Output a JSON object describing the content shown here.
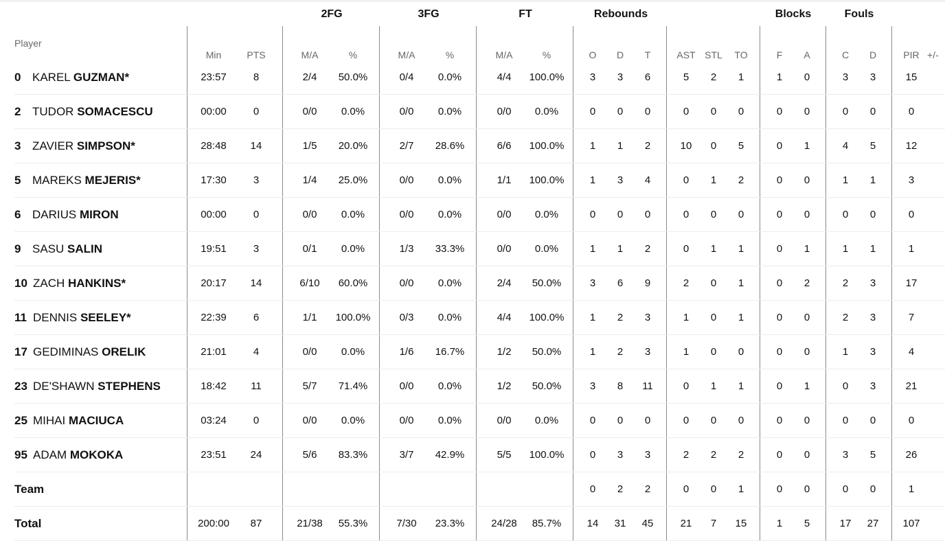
{
  "groups": {
    "fg2": "2FG",
    "fg3": "3FG",
    "ft": "FT",
    "reb": "Rebounds",
    "blk": "Blocks",
    "fouls": "Fouls"
  },
  "headers": {
    "player": "Player",
    "min": "Min",
    "pts": "PTS",
    "fg2_ma": "M/A",
    "fg2_pct": "%",
    "fg3_ma": "M/A",
    "fg3_pct": "%",
    "ft_ma": "M/A",
    "ft_pct": "%",
    "reb_o": "O",
    "reb_d": "D",
    "reb_t": "T",
    "ast": "AST",
    "stl": "STL",
    "to": "TO",
    "blk_f": "F",
    "blk_a": "A",
    "foul_c": "C",
    "foul_d": "D",
    "pir": "PIR",
    "pm": "+/-"
  },
  "players": [
    {
      "num": "0",
      "first": "KAREL",
      "last": "GUZMAN*",
      "min": "23:57",
      "pts": "8",
      "fg2_ma": "2/4",
      "fg2_pct": "50.0%",
      "fg3_ma": "0/4",
      "fg3_pct": "0.0%",
      "ft_ma": "4/4",
      "ft_pct": "100.0%",
      "o": "3",
      "d": "3",
      "t": "6",
      "ast": "5",
      "stl": "2",
      "to": "1",
      "bf": "1",
      "ba": "0",
      "fc": "3",
      "fd": "3",
      "pir": "15"
    },
    {
      "num": "2",
      "first": "TUDOR",
      "last": "SOMACESCU",
      "min": "00:00",
      "pts": "0",
      "fg2_ma": "0/0",
      "fg2_pct": "0.0%",
      "fg3_ma": "0/0",
      "fg3_pct": "0.0%",
      "ft_ma": "0/0",
      "ft_pct": "0.0%",
      "o": "0",
      "d": "0",
      "t": "0",
      "ast": "0",
      "stl": "0",
      "to": "0",
      "bf": "0",
      "ba": "0",
      "fc": "0",
      "fd": "0",
      "pir": "0"
    },
    {
      "num": "3",
      "first": "ZAVIER",
      "last": "SIMPSON*",
      "min": "28:48",
      "pts": "14",
      "fg2_ma": "1/5",
      "fg2_pct": "20.0%",
      "fg3_ma": "2/7",
      "fg3_pct": "28.6%",
      "ft_ma": "6/6",
      "ft_pct": "100.0%",
      "o": "1",
      "d": "1",
      "t": "2",
      "ast": "10",
      "stl": "0",
      "to": "5",
      "bf": "0",
      "ba": "1",
      "fc": "4",
      "fd": "5",
      "pir": "12"
    },
    {
      "num": "5",
      "first": "MAREKS",
      "last": "MEJERIS*",
      "min": "17:30",
      "pts": "3",
      "fg2_ma": "1/4",
      "fg2_pct": "25.0%",
      "fg3_ma": "0/0",
      "fg3_pct": "0.0%",
      "ft_ma": "1/1",
      "ft_pct": "100.0%",
      "o": "1",
      "d": "3",
      "t": "4",
      "ast": "0",
      "stl": "1",
      "to": "2",
      "bf": "0",
      "ba": "0",
      "fc": "1",
      "fd": "1",
      "pir": "3"
    },
    {
      "num": "6",
      "first": "DARIUS",
      "last": "MIRON",
      "min": "00:00",
      "pts": "0",
      "fg2_ma": "0/0",
      "fg2_pct": "0.0%",
      "fg3_ma": "0/0",
      "fg3_pct": "0.0%",
      "ft_ma": "0/0",
      "ft_pct": "0.0%",
      "o": "0",
      "d": "0",
      "t": "0",
      "ast": "0",
      "stl": "0",
      "to": "0",
      "bf": "0",
      "ba": "0",
      "fc": "0",
      "fd": "0",
      "pir": "0"
    },
    {
      "num": "9",
      "first": "SASU",
      "last": "SALIN",
      "min": "19:51",
      "pts": "3",
      "fg2_ma": "0/1",
      "fg2_pct": "0.0%",
      "fg3_ma": "1/3",
      "fg3_pct": "33.3%",
      "ft_ma": "0/0",
      "ft_pct": "0.0%",
      "o": "1",
      "d": "1",
      "t": "2",
      "ast": "0",
      "stl": "1",
      "to": "1",
      "bf": "0",
      "ba": "1",
      "fc": "1",
      "fd": "1",
      "pir": "1"
    },
    {
      "num": "10",
      "first": "ZACH",
      "last": "HANKINS*",
      "min": "20:17",
      "pts": "14",
      "fg2_ma": "6/10",
      "fg2_pct": "60.0%",
      "fg3_ma": "0/0",
      "fg3_pct": "0.0%",
      "ft_ma": "2/4",
      "ft_pct": "50.0%",
      "o": "3",
      "d": "6",
      "t": "9",
      "ast": "2",
      "stl": "0",
      "to": "1",
      "bf": "0",
      "ba": "2",
      "fc": "2",
      "fd": "3",
      "pir": "17"
    },
    {
      "num": "11",
      "first": "DENNIS",
      "last": "SEELEY*",
      "min": "22:39",
      "pts": "6",
      "fg2_ma": "1/1",
      "fg2_pct": "100.0%",
      "fg3_ma": "0/3",
      "fg3_pct": "0.0%",
      "ft_ma": "4/4",
      "ft_pct": "100.0%",
      "o": "1",
      "d": "2",
      "t": "3",
      "ast": "1",
      "stl": "0",
      "to": "1",
      "bf": "0",
      "ba": "0",
      "fc": "2",
      "fd": "3",
      "pir": "7"
    },
    {
      "num": "17",
      "first": "GEDIMINAS",
      "last": "ORELIK",
      "min": "21:01",
      "pts": "4",
      "fg2_ma": "0/0",
      "fg2_pct": "0.0%",
      "fg3_ma": "1/6",
      "fg3_pct": "16.7%",
      "ft_ma": "1/2",
      "ft_pct": "50.0%",
      "o": "1",
      "d": "2",
      "t": "3",
      "ast": "1",
      "stl": "0",
      "to": "0",
      "bf": "0",
      "ba": "0",
      "fc": "1",
      "fd": "3",
      "pir": "4"
    },
    {
      "num": "23",
      "first": "DE'SHAWN",
      "last": "STEPHENS",
      "min": "18:42",
      "pts": "11",
      "fg2_ma": "5/7",
      "fg2_pct": "71.4%",
      "fg3_ma": "0/0",
      "fg3_pct": "0.0%",
      "ft_ma": "1/2",
      "ft_pct": "50.0%",
      "o": "3",
      "d": "8",
      "t": "11",
      "ast": "0",
      "stl": "1",
      "to": "1",
      "bf": "0",
      "ba": "1",
      "fc": "0",
      "fd": "3",
      "pir": "21"
    },
    {
      "num": "25",
      "first": "MIHAI",
      "last": "MACIUCA",
      "min": "03:24",
      "pts": "0",
      "fg2_ma": "0/0",
      "fg2_pct": "0.0%",
      "fg3_ma": "0/0",
      "fg3_pct": "0.0%",
      "ft_ma": "0/0",
      "ft_pct": "0.0%",
      "o": "0",
      "d": "0",
      "t": "0",
      "ast": "0",
      "stl": "0",
      "to": "0",
      "bf": "0",
      "ba": "0",
      "fc": "0",
      "fd": "0",
      "pir": "0"
    },
    {
      "num": "95",
      "first": "ADAM",
      "last": "MOKOKA",
      "min": "23:51",
      "pts": "24",
      "fg2_ma": "5/6",
      "fg2_pct": "83.3%",
      "fg3_ma": "3/7",
      "fg3_pct": "42.9%",
      "ft_ma": "5/5",
      "ft_pct": "100.0%",
      "o": "0",
      "d": "3",
      "t": "3",
      "ast": "2",
      "stl": "2",
      "to": "2",
      "bf": "0",
      "ba": "0",
      "fc": "3",
      "fd": "5",
      "pir": "26"
    }
  ],
  "team": {
    "label": "Team",
    "min": "",
    "pts": "",
    "fg2_ma": "",
    "fg2_pct": "",
    "fg3_ma": "",
    "fg3_pct": "",
    "ft_ma": "",
    "ft_pct": "",
    "o": "0",
    "d": "2",
    "t": "2",
    "ast": "0",
    "stl": "0",
    "to": "1",
    "bf": "0",
    "ba": "0",
    "fc": "0",
    "fd": "0",
    "pir": "1"
  },
  "total": {
    "label": "Total",
    "min": "200:00",
    "pts": "87",
    "fg2_ma": "21/38",
    "fg2_pct": "55.3%",
    "fg3_ma": "7/30",
    "fg3_pct": "23.3%",
    "ft_ma": "24/28",
    "ft_pct": "85.7%",
    "o": "14",
    "d": "31",
    "t": "45",
    "ast": "21",
    "stl": "7",
    "to": "15",
    "bf": "1",
    "ba": "5",
    "fc": "17",
    "fd": "27",
    "pir": "107"
  }
}
